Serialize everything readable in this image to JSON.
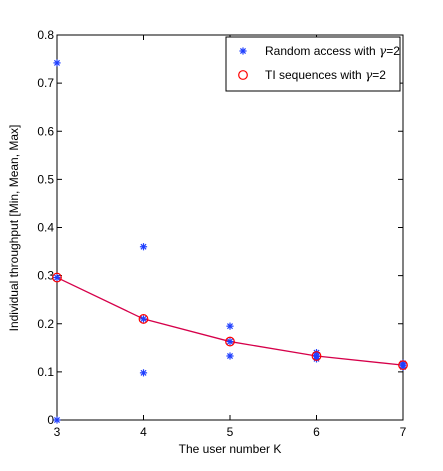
{
  "chart_data": {
    "type": "scatter",
    "title": "",
    "xlabel": "The user number K",
    "ylabel": "Individual throughput [Min, Mean, Max]",
    "xlim": [
      3,
      7
    ],
    "ylim": [
      0,
      0.8
    ],
    "xticks": [
      3,
      4,
      5,
      6,
      7
    ],
    "xtick_labels": [
      "3",
      "4",
      "5",
      "6",
      "7"
    ],
    "yticks": [
      0,
      0.1,
      0.2,
      0.3,
      0.4,
      0.5,
      0.6,
      0.7,
      0.8
    ],
    "ytick_labels": [
      "0",
      "0.1",
      "0.2",
      "0.3",
      "0.4",
      "0.5",
      "0.6",
      "0.7",
      "0.8"
    ],
    "grid": false,
    "legend_position": "top-right",
    "series": [
      {
        "name": "Random access with γ=2",
        "legend_main": "Random access with ",
        "legend_tail": "=2",
        "marker": "asterisk",
        "color": "#1f3fff",
        "points": [
          {
            "x": 3,
            "y": 0.742
          },
          {
            "x": 3,
            "y": 0.296
          },
          {
            "x": 3,
            "y": 0.0
          },
          {
            "x": 4,
            "y": 0.36
          },
          {
            "x": 4,
            "y": 0.21
          },
          {
            "x": 4,
            "y": 0.098
          },
          {
            "x": 5,
            "y": 0.195
          },
          {
            "x": 5,
            "y": 0.163
          },
          {
            "x": 5,
            "y": 0.133
          },
          {
            "x": 6,
            "y": 0.14
          },
          {
            "x": 6,
            "y": 0.133
          },
          {
            "x": 6,
            "y": 0.127
          },
          {
            "x": 7,
            "y": 0.118
          },
          {
            "x": 7,
            "y": 0.114
          },
          {
            "x": 7,
            "y": 0.11
          }
        ]
      },
      {
        "name": "TI sequences with γ=2",
        "legend_main": "TI sequences with ",
        "legend_tail": "=2",
        "marker": "circle",
        "color": "#ff0000",
        "points": [
          {
            "x": 3,
            "y": 0.296
          },
          {
            "x": 4,
            "y": 0.21
          },
          {
            "x": 5,
            "y": 0.163
          },
          {
            "x": 6,
            "y": 0.133
          },
          {
            "x": 7,
            "y": 0.114
          }
        ]
      }
    ],
    "mean_line": {
      "color": "#d6004a",
      "x": [
        3,
        4,
        5,
        6,
        7
      ],
      "y": [
        0.296,
        0.21,
        0.163,
        0.133,
        0.114
      ]
    },
    "gamma_symbol": "γ"
  }
}
